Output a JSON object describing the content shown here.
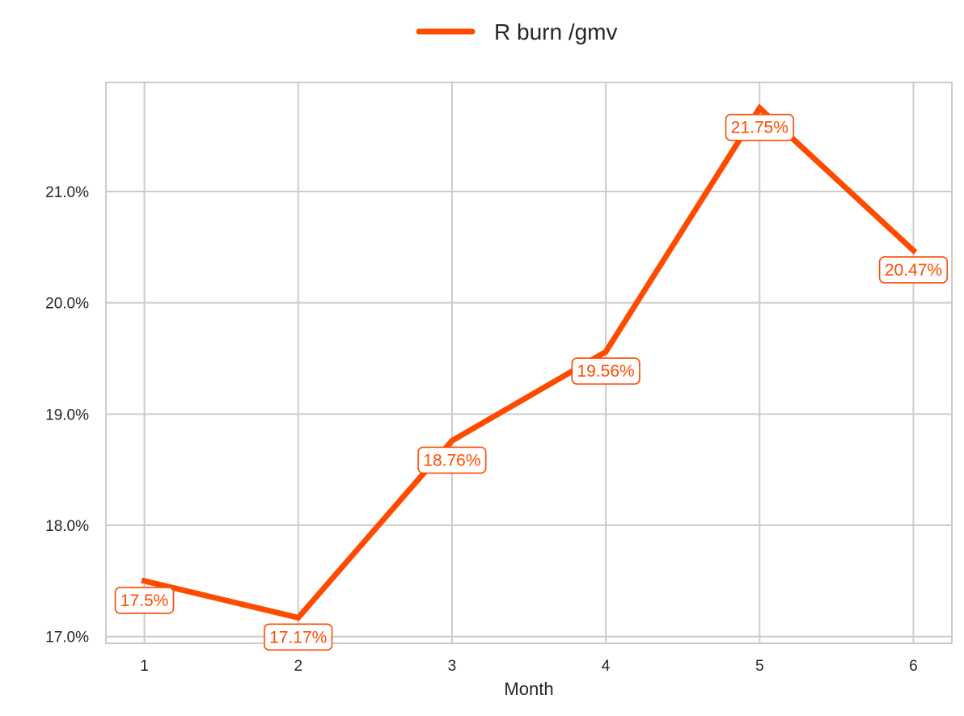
{
  "chart_data": {
    "type": "line",
    "title": "",
    "xlabel": "Month",
    "ylabel": "",
    "categories": [
      1,
      2,
      3,
      4,
      5,
      6
    ],
    "series": [
      {
        "name": "R burn /gmv",
        "values": [
          17.5,
          17.17,
          18.76,
          19.56,
          21.75,
          20.47
        ],
        "data_labels": [
          "17.5%",
          "17.17%",
          "18.76%",
          "19.56%",
          "21.75%",
          "20.47%"
        ]
      }
    ],
    "x_ticks": [
      "1",
      "2",
      "3",
      "4",
      "5",
      "6"
    ],
    "y_ticks": [
      17.0,
      18.0,
      19.0,
      20.0,
      21.0
    ],
    "y_tick_labels": [
      "17.0%",
      "18.0%",
      "19.0%",
      "20.0%",
      "21.0%"
    ],
    "xlim": [
      0.75,
      6.25
    ],
    "ylim": [
      16.94,
      21.98
    ],
    "grid": true,
    "legend_position": "top-center",
    "colors": {
      "line": "#ff4b00",
      "grid": "#cccccc",
      "axes_border": "#cccccc",
      "text": "#262626"
    }
  }
}
